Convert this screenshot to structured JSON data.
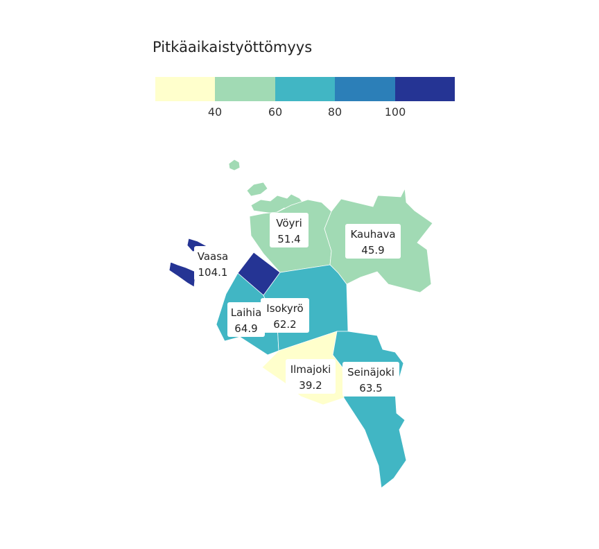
{
  "title": "Pitkäaikaistyöttömyys",
  "legend": {
    "colors": [
      "#ffffcc",
      "#a1dab4",
      "#41b6c4",
      "#2c7fb8",
      "#253494"
    ],
    "ticks": [
      "40",
      "60",
      "80",
      "100"
    ]
  },
  "regions": [
    {
      "name": "Vöyri",
      "value": "51.4",
      "color": "#a1dab4"
    },
    {
      "name": "Kauhava",
      "value": "45.9",
      "color": "#a1dab4"
    },
    {
      "name": "Vaasa",
      "value": "104.1",
      "color": "#253494"
    },
    {
      "name": "Laihia",
      "value": "64.9",
      "color": "#41b6c4"
    },
    {
      "name": "Isokyrö",
      "value": "62.2",
      "color": "#41b6c4"
    },
    {
      "name": "Ilmajoki",
      "value": "39.2",
      "color": "#ffffcc"
    },
    {
      "name": "Seinäjoki",
      "value": "63.5",
      "color": "#41b6c4"
    }
  ]
}
